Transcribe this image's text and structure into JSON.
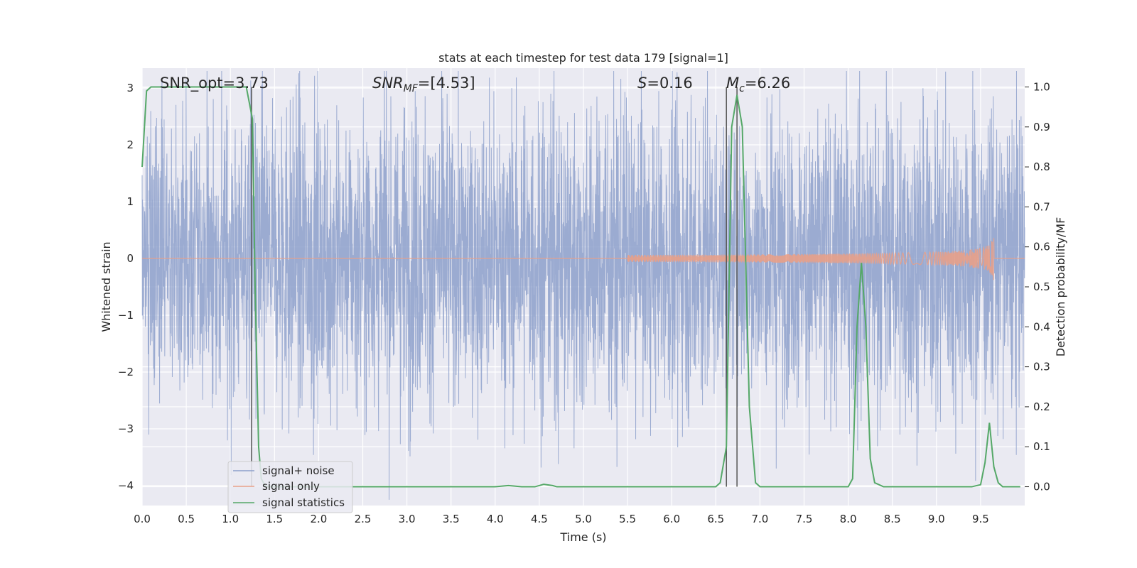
{
  "chart_data": {
    "type": "line",
    "title": "stats at each timestep for test data 179 [signal=1]",
    "xlabel": "Time (s)",
    "ylabel_left": "Whitened strain",
    "ylabel_right": "Detection probability/MF",
    "xlim": [
      0.0,
      10.0
    ],
    "ylim_left": [
      -4.35,
      3.35
    ],
    "ylim_right": [
      -0.047,
      1.047
    ],
    "x_ticks": [
      "0.0",
      "0.5",
      "1.0",
      "1.5",
      "2.0",
      "2.5",
      "3.0",
      "3.5",
      "4.0",
      "4.5",
      "5.0",
      "5.5",
      "6.0",
      "6.5",
      "7.0",
      "7.5",
      "8.0",
      "8.5",
      "9.0",
      "9.5"
    ],
    "y_left_ticks": [
      "3",
      "2",
      "1",
      "0",
      "−1",
      "−2",
      "−3",
      "−4"
    ],
    "y_left_values": [
      3,
      2,
      1,
      0,
      -1,
      -2,
      -3,
      -4
    ],
    "y_right_ticks": [
      "1.0",
      "0.9",
      "0.8",
      "0.7",
      "0.6",
      "0.5",
      "0.4",
      "0.3",
      "0.2",
      "0.1",
      "0.0"
    ],
    "y_right_values": [
      1.0,
      0.9,
      0.8,
      0.7,
      0.6,
      0.5,
      0.4,
      0.3,
      0.2,
      0.1,
      0.0
    ],
    "grid": true,
    "legend_position": "lower-left",
    "annotations": {
      "snr_opt": "SNR_opt=3.73",
      "snr_mf": "SNR",
      "snr_mf_sub": "MF",
      "snr_mf_val": "=[4.53]",
      "s_sym": "S",
      "s_val": "=0.16",
      "mc_sym": "M",
      "mc_sub": "c",
      "mc_val": "=6.26"
    },
    "vertical_lines_x": [
      1.24,
      6.62,
      6.74
    ],
    "series": [
      {
        "name": "signal+ noise",
        "color": "#8da0cb",
        "axis": "left",
        "description_of_shape": "dense whitened noise, amplitude about ±2, peaks up to ±3.3",
        "amplitude_envelope": [
          2.2,
          2.2,
          2.4,
          2.6,
          2.2,
          2.5,
          2.4,
          2.4,
          2.3,
          2.5,
          2.4,
          2.3,
          2.5,
          2.2,
          2.3,
          2.4,
          2.6,
          2.5,
          2.4,
          2.4
        ]
      },
      {
        "name": "signal only",
        "color": "#e8a088",
        "axis": "left",
        "chirp_start": 5.5,
        "chirp_end": 9.65,
        "chirp_peak_amplitude": 0.4
      },
      {
        "name": "signal statistics",
        "color": "#55a868",
        "axis": "right",
        "x": [
          0.0,
          0.05,
          0.1,
          0.2,
          0.4,
          0.6,
          0.8,
          1.0,
          1.1,
          1.18,
          1.25,
          1.28,
          1.32,
          1.35,
          1.4,
          1.5,
          2.0,
          3.0,
          4.0,
          4.15,
          4.3,
          4.45,
          4.55,
          4.65,
          4.7,
          5.0,
          6.0,
          6.5,
          6.55,
          6.62,
          6.68,
          6.74,
          6.8,
          6.88,
          6.95,
          7.0,
          7.1,
          7.5,
          8.0,
          8.05,
          8.1,
          8.15,
          8.2,
          8.25,
          8.3,
          8.4,
          9.0,
          9.4,
          9.5,
          9.55,
          9.6,
          9.65,
          9.7,
          9.75,
          9.8,
          9.95
        ],
        "values": [
          0.8,
          0.99,
          1.0,
          1.0,
          1.0,
          1.0,
          1.0,
          1.0,
          1.0,
          1.0,
          0.92,
          0.5,
          0.1,
          0.02,
          0.0,
          0.0,
          0.0,
          0.0,
          0.0,
          0.003,
          0.0,
          0.0,
          0.006,
          0.003,
          0.0,
          0.0,
          0.0,
          0.0,
          0.01,
          0.1,
          0.9,
          0.98,
          0.9,
          0.2,
          0.01,
          0.0,
          0.0,
          0.0,
          0.0,
          0.02,
          0.4,
          0.56,
          0.4,
          0.07,
          0.01,
          0.0,
          0.0,
          0.0,
          0.005,
          0.06,
          0.16,
          0.05,
          0.01,
          0.0,
          0.0,
          0.0
        ]
      }
    ]
  }
}
